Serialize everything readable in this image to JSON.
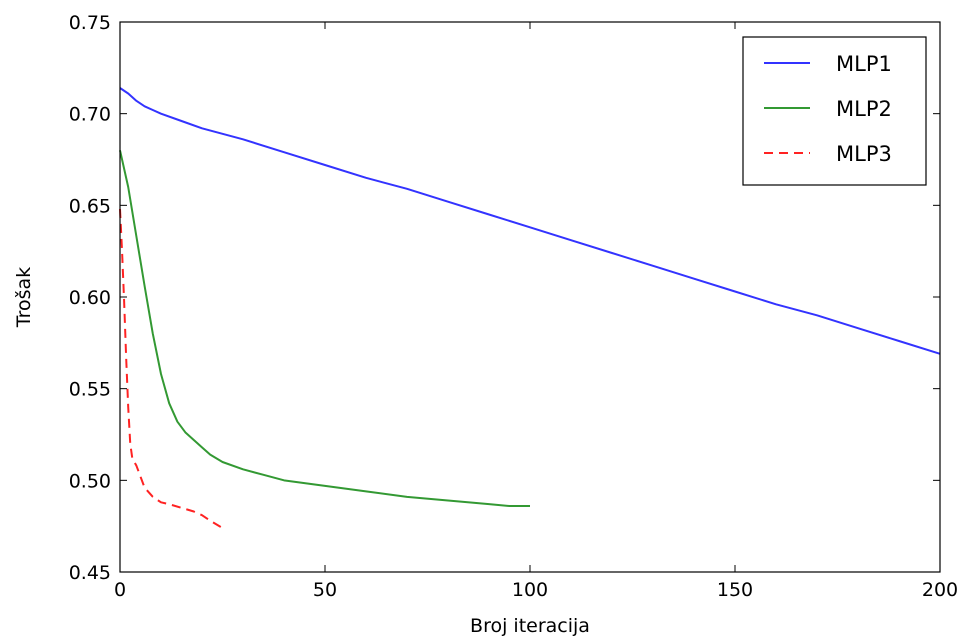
{
  "chart_data": {
    "type": "line",
    "title": "",
    "xlabel": "Broj iteracija",
    "ylabel": "Trošak",
    "xlim": [
      0,
      200
    ],
    "ylim": [
      0.45,
      0.75
    ],
    "x_ticks": [
      0,
      50,
      100,
      150,
      200
    ],
    "x_tick_labels": [
      "0",
      "50",
      "100",
      "150",
      "200"
    ],
    "y_ticks": [
      0.45,
      0.5,
      0.55,
      0.6,
      0.65,
      0.7,
      0.75
    ],
    "y_tick_labels": [
      "0.45",
      "0.50",
      "0.55",
      "0.60",
      "0.65",
      "0.70",
      "0.75"
    ],
    "grid": false,
    "legend_position": "top-right",
    "series": [
      {
        "name": "MLP1",
        "color": "#3333ff",
        "dash": "solid",
        "x": [
          0,
          2,
          4,
          6,
          8,
          10,
          15,
          20,
          25,
          30,
          40,
          50,
          60,
          70,
          80,
          90,
          100,
          110,
          120,
          130,
          140,
          150,
          160,
          170,
          180,
          190,
          200
        ],
        "y": [
          0.714,
          0.711,
          0.707,
          0.704,
          0.702,
          0.7,
          0.696,
          0.692,
          0.689,
          0.686,
          0.679,
          0.672,
          0.665,
          0.659,
          0.652,
          0.645,
          0.638,
          0.631,
          0.624,
          0.617,
          0.61,
          0.603,
          0.596,
          0.59,
          0.583,
          0.576,
          0.569
        ]
      },
      {
        "name": "MLP2",
        "color": "#339933",
        "dash": "solid",
        "x": [
          0,
          2,
          4,
          6,
          8,
          10,
          12,
          14,
          16,
          18,
          20,
          22,
          25,
          30,
          35,
          40,
          50,
          60,
          70,
          80,
          90,
          95,
          98,
          100
        ],
        "y": [
          0.68,
          0.66,
          0.633,
          0.606,
          0.58,
          0.558,
          0.542,
          0.532,
          0.526,
          0.522,
          0.518,
          0.514,
          0.51,
          0.506,
          0.503,
          0.5,
          0.497,
          0.494,
          0.491,
          0.489,
          0.487,
          0.486,
          0.486,
          0.486
        ]
      },
      {
        "name": "MLP3",
        "color": "#ff2222",
        "dash": "dashed",
        "x": [
          0,
          0.5,
          1,
          1.5,
          2,
          2.5,
          3,
          4,
          5,
          6,
          8,
          10,
          12,
          15,
          18,
          20,
          22,
          25
        ],
        "y": [
          0.648,
          0.625,
          0.598,
          0.567,
          0.54,
          0.52,
          0.512,
          0.508,
          0.502,
          0.496,
          0.491,
          0.488,
          0.487,
          0.485,
          0.483,
          0.481,
          0.478,
          0.474
        ]
      }
    ]
  }
}
